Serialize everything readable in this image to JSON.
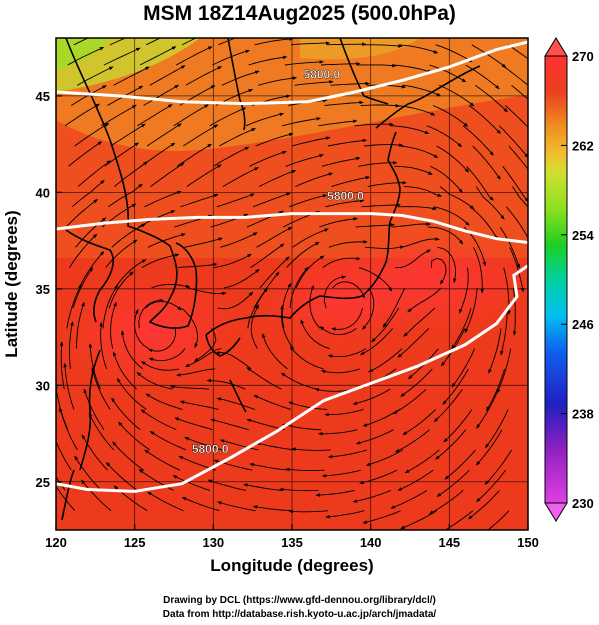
{
  "title": "MSM 18Z14Aug2025 (500.0hPa)",
  "x_axis": {
    "label": "Longitude (degrees)",
    "ticks": [
      120,
      125,
      130,
      135,
      140,
      145,
      150
    ],
    "range": [
      120,
      150
    ]
  },
  "y_axis": {
    "label": "Latitude  (degrees)",
    "ticks": [
      25,
      30,
      35,
      40,
      45
    ],
    "range": [
      22.5,
      48
    ]
  },
  "colorbar": {
    "ticks": [
      270,
      262,
      254,
      246,
      238,
      230
    ],
    "range": [
      230,
      270
    ],
    "colors": [
      "#e040e0",
      "#9020c0",
      "#2020c0",
      "#1060f0",
      "#00c0f0",
      "#00d0a0",
      "#20d020",
      "#90e020",
      "#d0e030",
      "#f0c030",
      "#f09020",
      "#e84020",
      "#ff3030"
    ]
  },
  "contours": [
    {
      "label": "5800.0",
      "points": [
        [
          120,
          24.9
        ],
        [
          122,
          24.6
        ],
        [
          125,
          24.5
        ],
        [
          128,
          24.9
        ],
        [
          131,
          26.2
        ],
        [
          134,
          27.6
        ],
        [
          137,
          29.2
        ],
        [
          140,
          30.1
        ],
        [
          143,
          31
        ],
        [
          146,
          32.1
        ],
        [
          148,
          33.2
        ],
        [
          149.3,
          34.6
        ],
        [
          149.1,
          35.7
        ],
        [
          150,
          36.2
        ]
      ]
    },
    {
      "label": "5800.0",
      "points": [
        [
          120,
          38.1
        ],
        [
          123,
          38.4
        ],
        [
          126,
          38.6
        ],
        [
          129,
          38.7
        ],
        [
          132,
          38.7
        ],
        [
          135,
          38.9
        ],
        [
          138,
          38.9
        ],
        [
          140,
          38.9
        ],
        [
          142,
          38.8
        ],
        [
          144,
          38.5
        ],
        [
          146,
          38
        ],
        [
          148,
          37.6
        ],
        [
          150,
          37.4
        ]
      ]
    },
    {
      "label": "5800.0",
      "points": [
        [
          120,
          45.2
        ],
        [
          124,
          45
        ],
        [
          128,
          44.7
        ],
        [
          132,
          44.6
        ],
        [
          136,
          44.7
        ],
        [
          139,
          45.2
        ],
        [
          142,
          45.8
        ],
        [
          145,
          46.5
        ],
        [
          148,
          47.4
        ],
        [
          150,
          47.8
        ]
      ]
    }
  ],
  "contour_label_positions": [
    [
      129.8,
      26.5
    ],
    [
      136.9,
      45.9
    ],
    [
      138.4,
      39.6
    ]
  ],
  "highs": [
    [
      126,
      33.2
    ],
    [
      144.5,
      36.5
    ],
    [
      138,
      34.5
    ]
  ],
  "credits": {
    "line1": "Drawing by DCL (https://www.gfd-dennou.org/library/dcl/)",
    "line2": "Data from http://database.rish.kyoto-u.ac.jp/arch/jmadata/"
  }
}
